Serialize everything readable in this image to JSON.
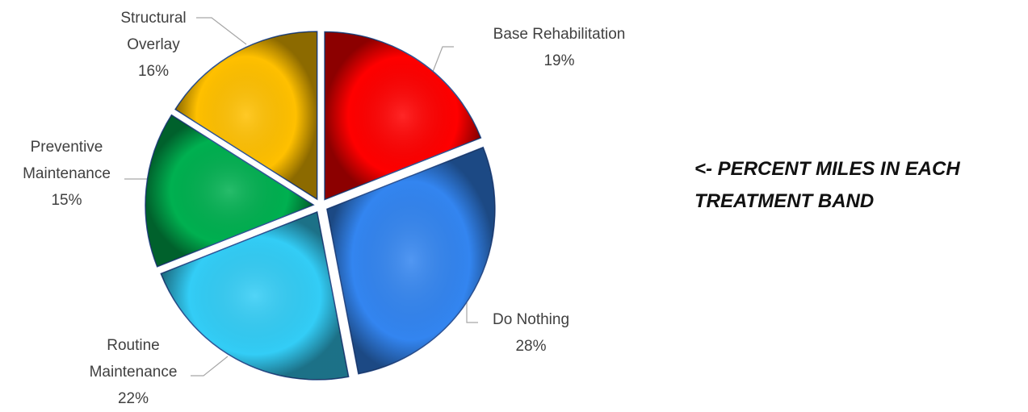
{
  "chart_data": {
    "type": "pie",
    "annotation": "<- PERCENT MILES IN EACH TREATMENT BAND",
    "categories": [
      "Base Rehabilitation",
      "Do Nothing",
      "Routine Maintenance",
      "Preventive Maintenance",
      "Structural Overlay"
    ],
    "values": [
      19,
      28,
      22,
      15,
      16
    ],
    "value_labels": [
      "19%",
      "28%",
      "22%",
      "15%",
      "16%"
    ],
    "colors": [
      "#ff0000",
      "#3385f0",
      "#33cdf6",
      "#00b050",
      "#ffc000"
    ]
  }
}
